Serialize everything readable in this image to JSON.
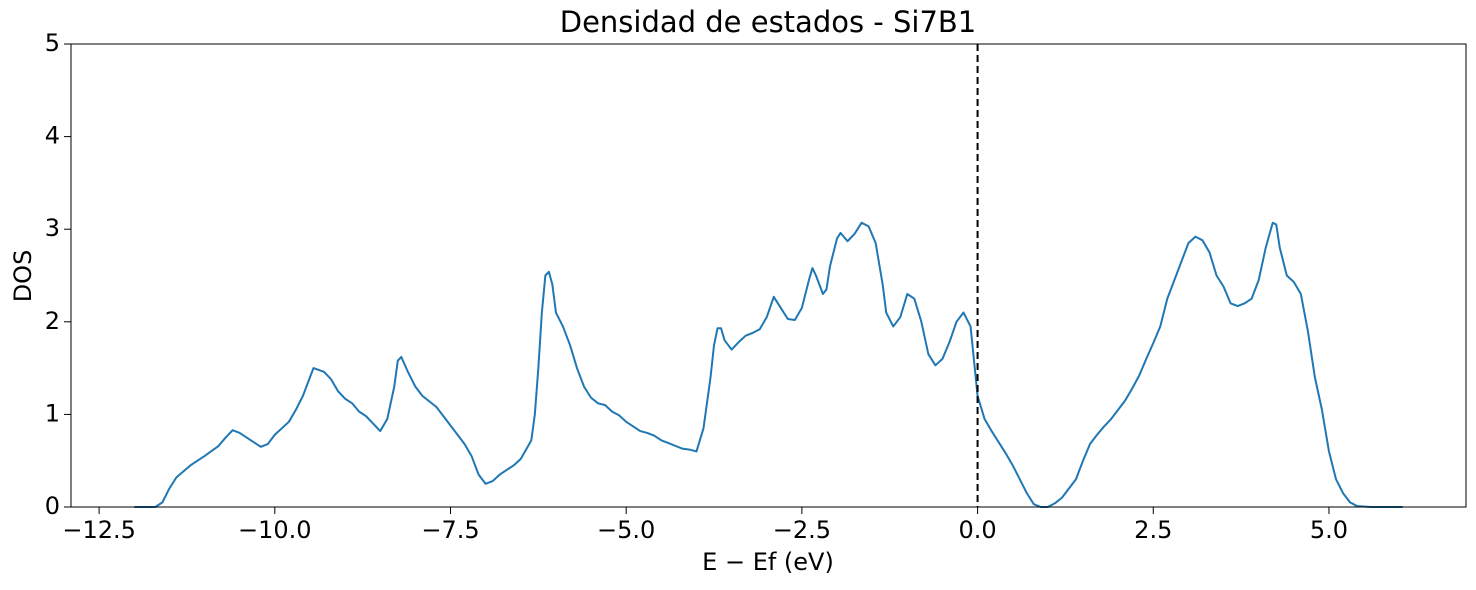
{
  "chart_data": {
    "type": "line",
    "title": "Densidad de estados - Si7B1",
    "x_label": "E − Ef (eV)",
    "y_label": "DOS",
    "xlim": [
      -12.9,
      6.95
    ],
    "ylim": [
      0,
      5
    ],
    "xticks": [
      {
        "value": -12.5,
        "label": "−12.5"
      },
      {
        "value": -10,
        "label": "−10.0"
      },
      {
        "value": -7.5,
        "label": "−7.5"
      },
      {
        "value": -5,
        "label": "−5.0"
      },
      {
        "value": -2.5,
        "label": "−2.5"
      },
      {
        "value": 0,
        "label": "0.0"
      },
      2.5,
      {
        "value": 5,
        "label": "5.0"
      }
    ],
    "yticks": [
      0,
      1,
      2,
      3,
      4,
      5
    ],
    "grid": false,
    "vline": {
      "x": 0,
      "color": "#000000",
      "dashed": true
    },
    "series": [
      {
        "color": "#1f77b4",
        "x": [
          -12.0,
          -11.7,
          -11.6,
          -11.5,
          -11.4,
          -11.2,
          -11.0,
          -10.8,
          -10.7,
          -10.6,
          -10.5,
          -10.3,
          -10.2,
          -10.1,
          -10.0,
          -9.8,
          -9.7,
          -9.6,
          -9.5,
          -9.45,
          -9.3,
          -9.2,
          -9.1,
          -9.0,
          -8.9,
          -8.8,
          -8.7,
          -8.6,
          -8.5,
          -8.4,
          -8.3,
          -8.25,
          -8.2,
          -8.1,
          -8.0,
          -7.9,
          -7.7,
          -7.5,
          -7.3,
          -7.2,
          -7.1,
          -7.0,
          -6.9,
          -6.8,
          -6.6,
          -6.5,
          -6.35,
          -6.3,
          -6.25,
          -6.2,
          -6.15,
          -6.1,
          -6.05,
          -6.0,
          -5.9,
          -5.8,
          -5.7,
          -5.6,
          -5.5,
          -5.4,
          -5.3,
          -5.2,
          -5.1,
          -5.0,
          -4.9,
          -4.8,
          -4.7,
          -4.6,
          -4.5,
          -4.4,
          -4.3,
          -4.2,
          -4.1,
          -4.0,
          -3.9,
          -3.8,
          -3.75,
          -3.7,
          -3.65,
          -3.6,
          -3.5,
          -3.4,
          -3.3,
          -3.2,
          -3.1,
          -3.0,
          -2.9,
          -2.8,
          -2.7,
          -2.6,
          -2.5,
          -2.4,
          -2.35,
          -2.3,
          -2.2,
          -2.15,
          -2.1,
          -2.0,
          -1.95,
          -1.85,
          -1.75,
          -1.65,
          -1.55,
          -1.45,
          -1.35,
          -1.3,
          -1.2,
          -1.1,
          -1.0,
          -0.9,
          -0.8,
          -0.7,
          -0.6,
          -0.5,
          -0.4,
          -0.3,
          -0.2,
          -0.1,
          0.0,
          0.1,
          0.2,
          0.3,
          0.4,
          0.5,
          0.6,
          0.7,
          0.8,
          0.9,
          1.0,
          1.1,
          1.2,
          1.3,
          1.4,
          1.5,
          1.6,
          1.7,
          1.8,
          1.9,
          2.0,
          2.1,
          2.2,
          2.3,
          2.4,
          2.5,
          2.6,
          2.7,
          2.8,
          2.9,
          3.0,
          3.1,
          3.2,
          3.3,
          3.4,
          3.5,
          3.6,
          3.7,
          3.8,
          3.9,
          4.0,
          4.1,
          4.2,
          4.25,
          4.3,
          4.4,
          4.5,
          4.6,
          4.7,
          4.8,
          4.9,
          5.0,
          5.1,
          5.2,
          5.3,
          5.4,
          5.6,
          6.05
        ],
        "values": [
          0,
          0,
          0.05,
          0.2,
          0.32,
          0.45,
          0.55,
          0.66,
          0.75,
          0.83,
          0.8,
          0.7,
          0.65,
          0.68,
          0.78,
          0.92,
          1.05,
          1.2,
          1.4,
          1.5,
          1.46,
          1.38,
          1.25,
          1.17,
          1.12,
          1.03,
          0.98,
          0.9,
          0.82,
          0.95,
          1.3,
          1.58,
          1.62,
          1.45,
          1.3,
          1.2,
          1.08,
          0.88,
          0.68,
          0.55,
          0.35,
          0.25,
          0.28,
          0.35,
          0.45,
          0.52,
          0.72,
          1.0,
          1.5,
          2.1,
          2.5,
          2.54,
          2.4,
          2.1,
          1.95,
          1.75,
          1.5,
          1.3,
          1.18,
          1.12,
          1.1,
          1.03,
          0.99,
          0.92,
          0.87,
          0.82,
          0.8,
          0.77,
          0.72,
          0.69,
          0.66,
          0.63,
          0.62,
          0.6,
          0.85,
          1.4,
          1.75,
          1.93,
          1.93,
          1.8,
          1.7,
          1.78,
          1.85,
          1.88,
          1.92,
          2.05,
          2.27,
          2.15,
          2.03,
          2.02,
          2.15,
          2.45,
          2.58,
          2.5,
          2.3,
          2.35,
          2.6,
          2.9,
          2.96,
          2.87,
          2.95,
          3.07,
          3.03,
          2.85,
          2.4,
          2.1,
          1.95,
          2.05,
          2.3,
          2.25,
          2.0,
          1.65,
          1.53,
          1.6,
          1.78,
          2.0,
          2.1,
          1.95,
          1.2,
          0.95,
          0.82,
          0.7,
          0.58,
          0.45,
          0.3,
          0.15,
          0.03,
          0,
          0,
          0.04,
          0.1,
          0.2,
          0.3,
          0.5,
          0.68,
          0.78,
          0.87,
          0.95,
          1.05,
          1.15,
          1.28,
          1.42,
          1.6,
          1.77,
          1.95,
          2.25,
          2.45,
          2.65,
          2.85,
          2.92,
          2.88,
          2.75,
          2.5,
          2.38,
          2.2,
          2.17,
          2.2,
          2.25,
          2.45,
          2.8,
          3.07,
          3.05,
          2.8,
          2.5,
          2.43,
          2.3,
          1.9,
          1.4,
          1.05,
          0.6,
          0.3,
          0.15,
          0.05,
          0.01,
          0,
          0
        ]
      }
    ]
  }
}
